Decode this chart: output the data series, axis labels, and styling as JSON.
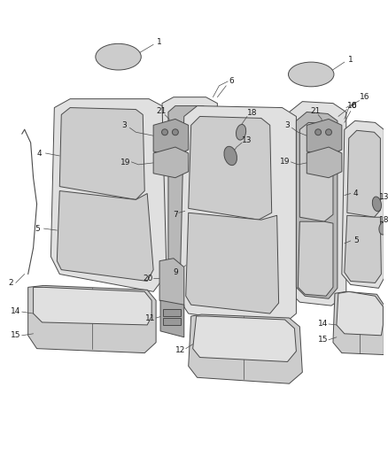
{
  "bg_color": "#ffffff",
  "line_color": "#4a4a4a",
  "fill_light": "#e0e0e0",
  "fill_mid": "#cccccc",
  "fill_dark": "#b8b8b8",
  "fill_darker": "#a8a8a8",
  "label_color": "#1a1a1a",
  "figsize": [
    4.38,
    5.33
  ],
  "dpi": 100,
  "lw": 0.7,
  "fs": 6.5
}
